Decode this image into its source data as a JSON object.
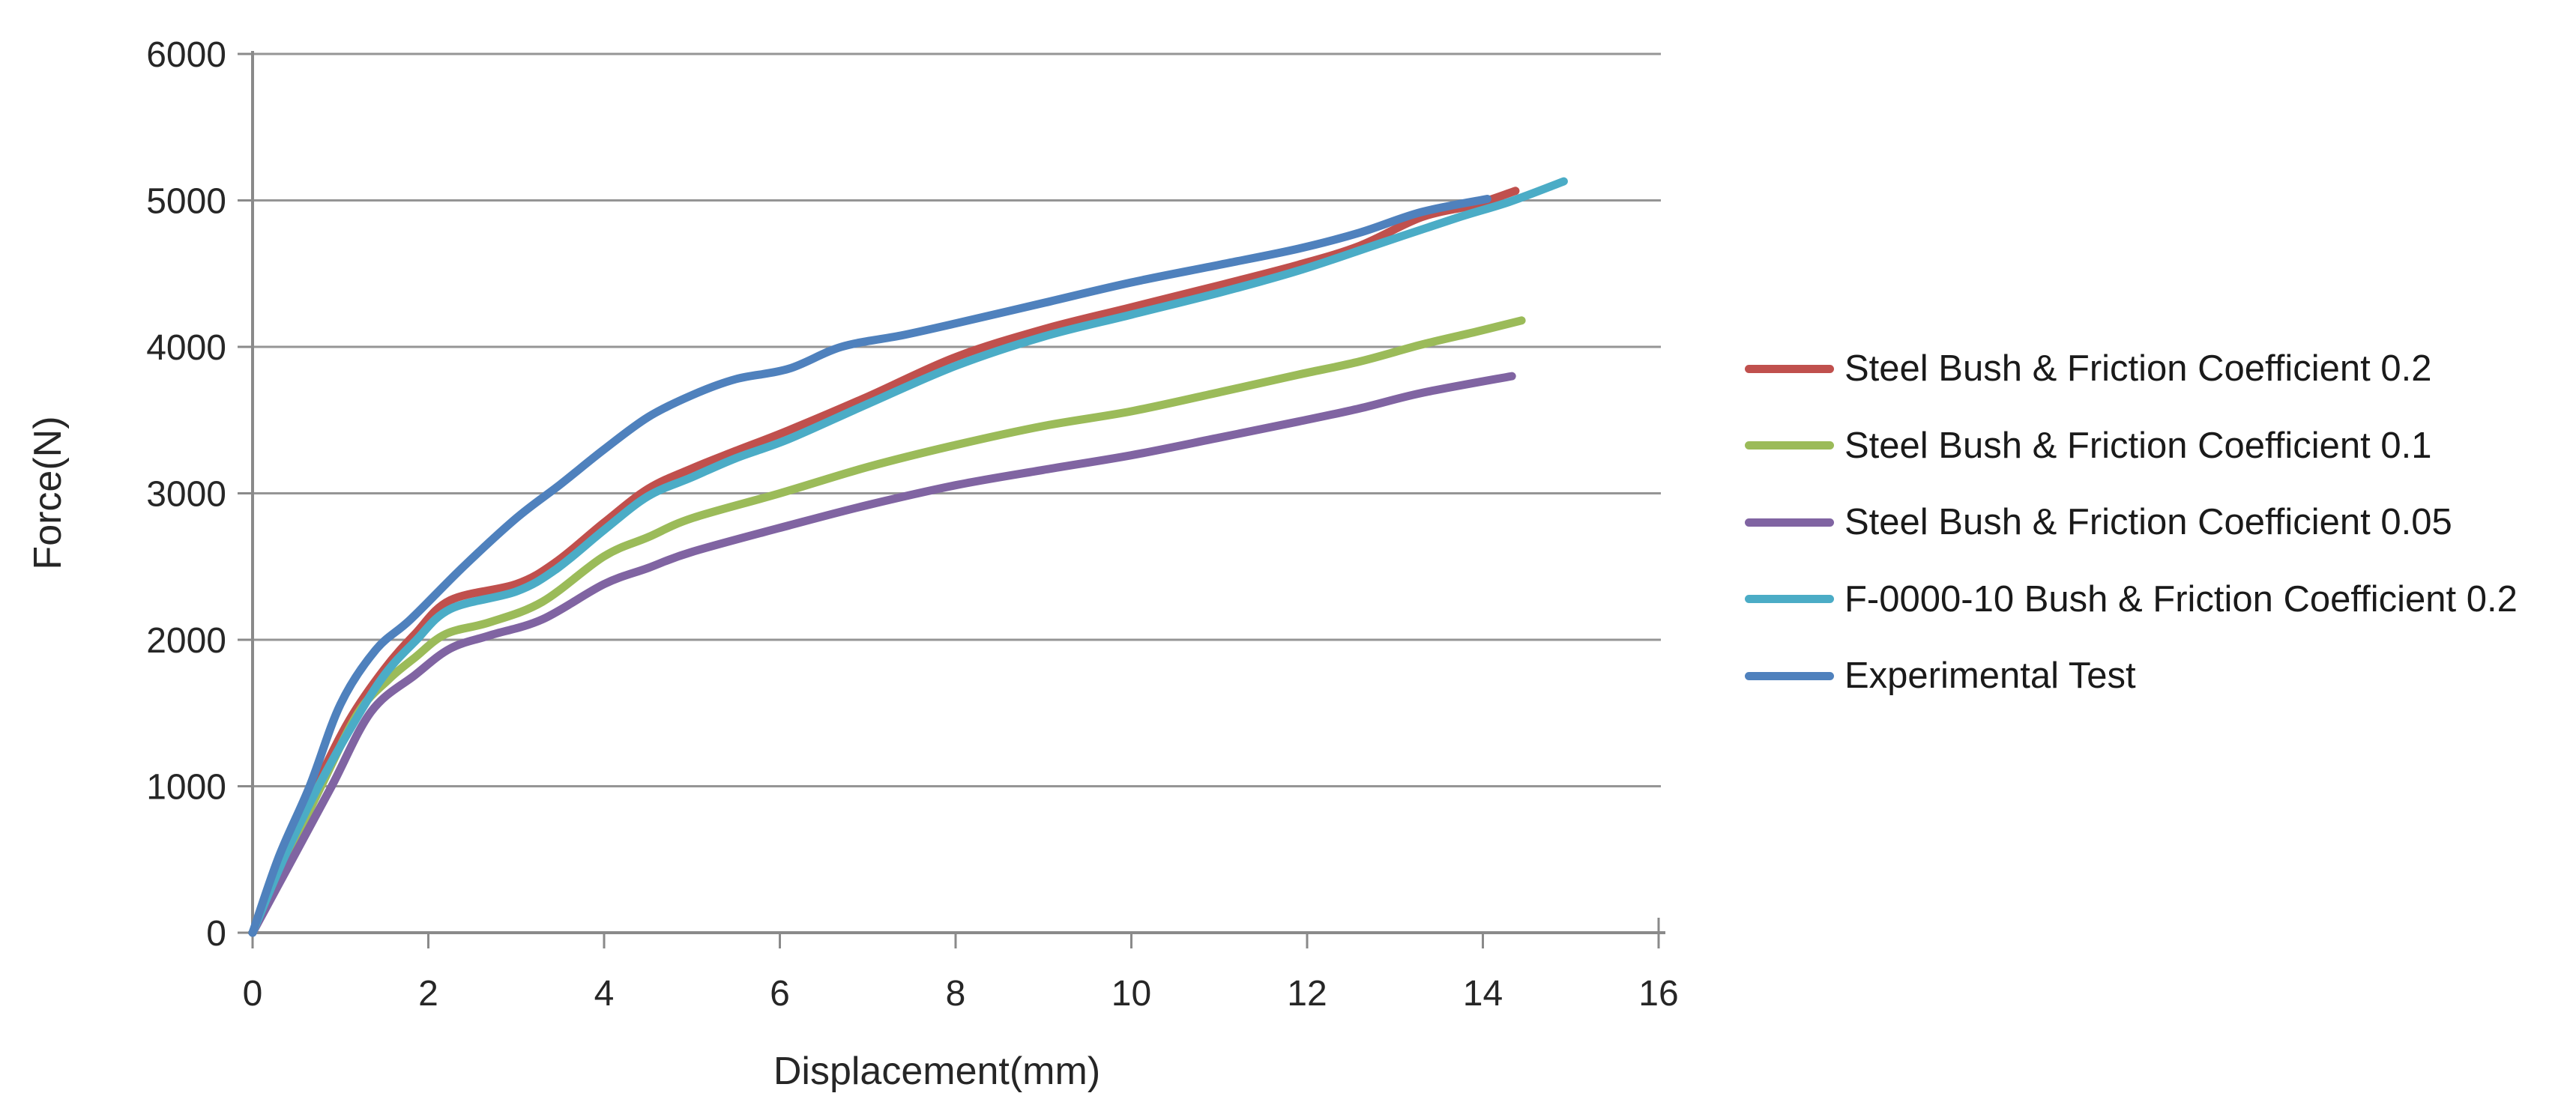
{
  "chart_data": {
    "type": "line",
    "title": "",
    "xlabel": "Displacement(mm)",
    "ylabel": "Force(N)",
    "xlim": [
      0,
      16
    ],
    "ylim": [
      0,
      6000
    ],
    "x_ticks": [
      0,
      2,
      4,
      6,
      8,
      10,
      12,
      14,
      16
    ],
    "y_ticks": [
      0,
      1000,
      2000,
      3000,
      4000,
      5000,
      6000
    ],
    "grid": "horizontal-only",
    "legend_position": "right",
    "series": [
      {
        "name": "Steel Bush & Friction Coefficient 0.2",
        "color": "#C0504D",
        "points": [
          [
            0,
            0
          ],
          [
            0.35,
            520
          ],
          [
            0.72,
            1000
          ],
          [
            1.1,
            1450
          ],
          [
            1.5,
            1800
          ],
          [
            1.85,
            2040
          ],
          [
            2.25,
            2270
          ],
          [
            3.0,
            2380
          ],
          [
            3.45,
            2530
          ],
          [
            4.0,
            2800
          ],
          [
            4.5,
            3030
          ],
          [
            5.0,
            3170
          ],
          [
            5.5,
            3290
          ],
          [
            6.1,
            3430
          ],
          [
            7.0,
            3660
          ],
          [
            8.0,
            3930
          ],
          [
            9.0,
            4120
          ],
          [
            10.0,
            4270
          ],
          [
            11.0,
            4420
          ],
          [
            11.9,
            4560
          ],
          [
            12.6,
            4690
          ],
          [
            13.3,
            4885
          ],
          [
            13.9,
            4970
          ],
          [
            14.37,
            5065
          ]
        ]
      },
      {
        "name": "Steel Bush & Friction Coefficient 0.1",
        "color": "#9BBB59",
        "points": [
          [
            0,
            0
          ],
          [
            0.4,
            520
          ],
          [
            0.78,
            1000
          ],
          [
            1.2,
            1500
          ],
          [
            1.55,
            1730
          ],
          [
            1.85,
            1880
          ],
          [
            2.2,
            2040
          ],
          [
            2.7,
            2120
          ],
          [
            3.3,
            2260
          ],
          [
            4.0,
            2570
          ],
          [
            4.5,
            2700
          ],
          [
            5.0,
            2830
          ],
          [
            6.0,
            3000
          ],
          [
            7.0,
            3180
          ],
          [
            8.0,
            3330
          ],
          [
            9.0,
            3460
          ],
          [
            10.0,
            3560
          ],
          [
            11.0,
            3690
          ],
          [
            11.9,
            3810
          ],
          [
            12.6,
            3900
          ],
          [
            13.3,
            4015
          ],
          [
            13.9,
            4100
          ],
          [
            14.44,
            4180
          ]
        ]
      },
      {
        "name": "Steel Bush & Friction Coefficient 0.05",
        "color": "#8064A2",
        "points": [
          [
            0,
            0
          ],
          [
            0.45,
            500
          ],
          [
            0.9,
            1000
          ],
          [
            1.35,
            1510
          ],
          [
            1.85,
            1760
          ],
          [
            2.25,
            1940
          ],
          [
            2.7,
            2030
          ],
          [
            3.3,
            2140
          ],
          [
            4.0,
            2380
          ],
          [
            4.5,
            2490
          ],
          [
            5.0,
            2600
          ],
          [
            6.1,
            2780
          ],
          [
            7.0,
            2920
          ],
          [
            8.0,
            3055
          ],
          [
            9.0,
            3160
          ],
          [
            10.0,
            3260
          ],
          [
            11.0,
            3380
          ],
          [
            11.9,
            3490
          ],
          [
            12.6,
            3580
          ],
          [
            13.3,
            3685
          ],
          [
            14.33,
            3800
          ]
        ]
      },
      {
        "name": "F-0000-10 Bush & Friction Coefficient 0.2",
        "color": "#4BACC6",
        "points": [
          [
            0,
            0
          ],
          [
            0.35,
            500
          ],
          [
            0.75,
            1000
          ],
          [
            1.15,
            1430
          ],
          [
            1.5,
            1760
          ],
          [
            1.85,
            1990
          ],
          [
            2.25,
            2210
          ],
          [
            3.0,
            2330
          ],
          [
            3.45,
            2480
          ],
          [
            4.0,
            2750
          ],
          [
            4.5,
            2980
          ],
          [
            5.0,
            3110
          ],
          [
            5.5,
            3240
          ],
          [
            6.1,
            3370
          ],
          [
            7.0,
            3610
          ],
          [
            8.0,
            3870
          ],
          [
            9.0,
            4070
          ],
          [
            10.0,
            4220
          ],
          [
            11.0,
            4370
          ],
          [
            11.9,
            4520
          ],
          [
            12.8,
            4700
          ],
          [
            13.7,
            4880
          ],
          [
            14.3,
            4990
          ],
          [
            14.92,
            5130
          ]
        ]
      },
      {
        "name": "Experimental Test",
        "color": "#4F81BD",
        "points": [
          [
            0,
            0
          ],
          [
            0.3,
            520
          ],
          [
            0.65,
            1000
          ],
          [
            1.0,
            1560
          ],
          [
            1.4,
            1930
          ],
          [
            1.8,
            2140
          ],
          [
            2.4,
            2500
          ],
          [
            3.0,
            2830
          ],
          [
            3.5,
            3060
          ],
          [
            4.0,
            3300
          ],
          [
            4.5,
            3520
          ],
          [
            5.0,
            3670
          ],
          [
            5.5,
            3780
          ],
          [
            6.1,
            3850
          ],
          [
            6.7,
            4000
          ],
          [
            7.4,
            4080
          ],
          [
            8.0,
            4160
          ],
          [
            9.0,
            4300
          ],
          [
            10.0,
            4440
          ],
          [
            11.0,
            4560
          ],
          [
            11.9,
            4670
          ],
          [
            12.6,
            4780
          ],
          [
            13.3,
            4920
          ],
          [
            14.05,
            5010
          ]
        ]
      }
    ],
    "colors": {
      "gridline": "#959595",
      "axis": "#8a8a8a",
      "tick_text": "#262626",
      "background": "#ffffff"
    }
  }
}
